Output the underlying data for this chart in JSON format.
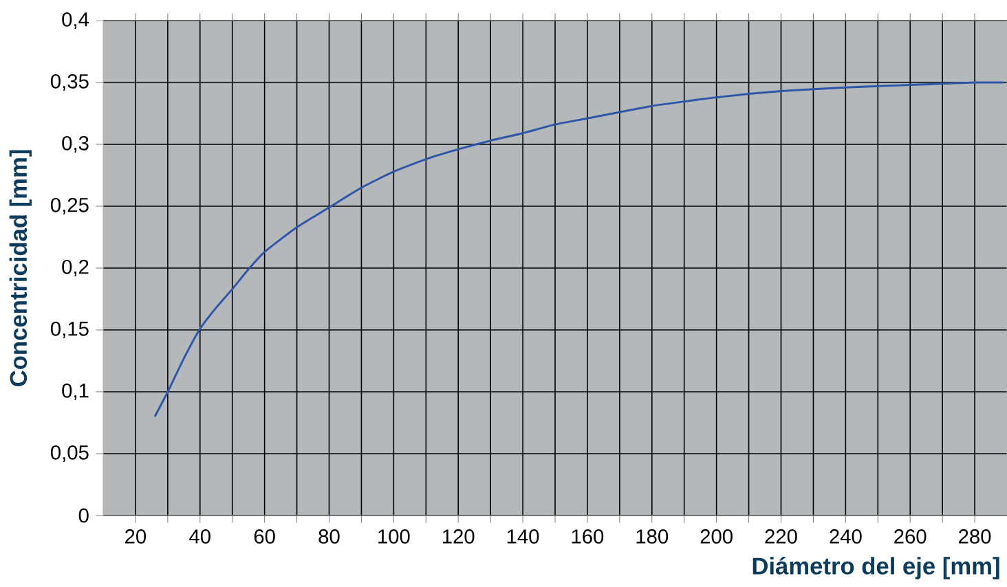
{
  "chart_data": {
    "type": "line",
    "xlabel": "Diámetro del eje [mm]",
    "ylabel": "Concentricidad [mm]",
    "xlim": [
      10,
      290
    ],
    "xticks": [
      20,
      40,
      60,
      80,
      100,
      120,
      140,
      160,
      180,
      200,
      220,
      240,
      260,
      280
    ],
    "ylim": [
      0,
      0.4
    ],
    "yticks": [
      0,
      {
        "value": 0.05,
        "label": "0,05"
      },
      {
        "value": 0.1,
        "label": "0,1"
      },
      {
        "value": 0.15,
        "label": "0,15"
      },
      {
        "value": 0.2,
        "label": "0,2"
      },
      {
        "value": 0.25,
        "label": "0,25"
      },
      {
        "value": 0.3,
        "label": "0,3"
      },
      {
        "value": 0.35,
        "label": "0,35"
      },
      {
        "value": 0.4,
        "label": "0,4"
      }
    ],
    "grid": true,
    "marker": "none",
    "line_style": "solid",
    "series": [
      {
        "color": "#2e56a8",
        "x": [
          26,
          30,
          35,
          40,
          45,
          50,
          55,
          60,
          70,
          80,
          90,
          100,
          110,
          120,
          130,
          140,
          150,
          160,
          180,
          200,
          220,
          240,
          260,
          270,
          280,
          289
        ],
        "values": [
          0.08,
          0.1,
          0.127,
          0.151,
          0.168,
          0.183,
          0.199,
          0.213,
          0.233,
          0.249,
          0.265,
          0.278,
          0.288,
          0.296,
          0.303,
          0.309,
          0.316,
          0.321,
          0.331,
          0.338,
          0.343,
          0.346,
          0.348,
          0.349,
          0.35,
          0.35
        ]
      }
    ]
  }
}
